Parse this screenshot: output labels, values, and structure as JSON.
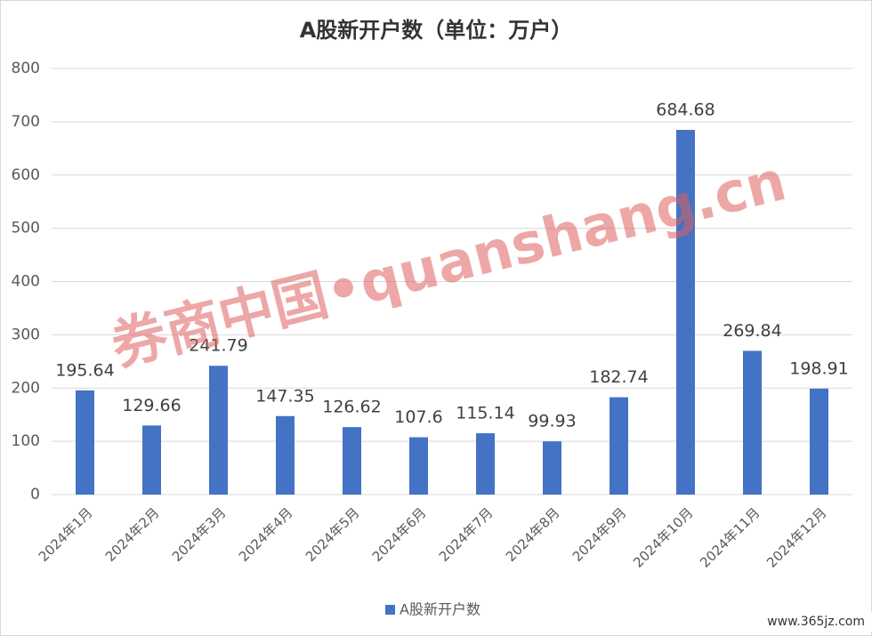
{
  "chart_data": {
    "type": "bar",
    "title": "A股新开户数（单位：万户）",
    "categories": [
      "2024年1月",
      "2024年2月",
      "2024年3月",
      "2024年4月",
      "2024年5月",
      "2024年6月",
      "2024年7月",
      "2024年8月",
      "2024年9月",
      "2024年10月",
      "2024年11月",
      "2024年12月"
    ],
    "series": [
      {
        "name": "A股新开户数",
        "color": "#4472c4",
        "values": [
          195.64,
          129.66,
          241.79,
          147.35,
          126.62,
          107.6,
          115.14,
          99.93,
          182.74,
          684.68,
          269.84,
          198.91
        ]
      }
    ],
    "ylim": [
      0,
      800
    ],
    "yticks": [
      0,
      100,
      200,
      300,
      400,
      500,
      600,
      700,
      800
    ],
    "grid": true,
    "legend": "bottom",
    "watermark": "券商中国•quanshang.cn",
    "source": "www.365jz.com"
  }
}
